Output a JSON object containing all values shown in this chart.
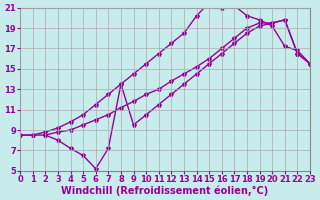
{
  "xlabel": "Windchill (Refroidissement éolien,°C)",
  "bg_color": "#c8ecec",
  "line_color": "#990099",
  "grid_color": "#aaaaaa",
  "xlim": [
    0,
    23
  ],
  "ylim": [
    5,
    21
  ],
  "xticks": [
    0,
    1,
    2,
    3,
    4,
    5,
    6,
    7,
    8,
    9,
    10,
    11,
    12,
    13,
    14,
    15,
    16,
    17,
    18,
    19,
    20,
    21,
    22,
    23
  ],
  "yticks": [
    5,
    7,
    9,
    11,
    13,
    15,
    17,
    19,
    21
  ],
  "line1_x": [
    0,
    1,
    2,
    3,
    4,
    5,
    6,
    7,
    8,
    9,
    10,
    11,
    12,
    13,
    14,
    15,
    16,
    17,
    18,
    19,
    20,
    21,
    22,
    23
  ],
  "line1_y": [
    8.5,
    8.5,
    8.8,
    9.2,
    9.8,
    10.5,
    11.5,
    12.5,
    13.5,
    14.5,
    15.5,
    16.5,
    17.5,
    18.5,
    20.2,
    21.5,
    21.0,
    21.2,
    20.2,
    19.8,
    19.2,
    17.2,
    16.8,
    15.5
  ],
  "line2_x": [
    2,
    3,
    4,
    5,
    6,
    7,
    8,
    9,
    10,
    11,
    12,
    13,
    14,
    15,
    16,
    17,
    18,
    19,
    20,
    21,
    22,
    23
  ],
  "line2_y": [
    8.5,
    8.8,
    9.0,
    9.5,
    10.0,
    10.5,
    11.2,
    11.8,
    12.5,
    13.0,
    13.8,
    14.5,
    15.2,
    16.0,
    17.0,
    18.0,
    19.0,
    19.5,
    19.5,
    19.8,
    16.5,
    15.5
  ],
  "line3_x": [
    0,
    1,
    2,
    3,
    4,
    5,
    6,
    7,
    8,
    9,
    10,
    11,
    12,
    13,
    14,
    15,
    16,
    17,
    18,
    19,
    20,
    21,
    22,
    23
  ],
  "line3_y": [
    8.5,
    8.5,
    8.5,
    8.0,
    7.2,
    6.5,
    5.2,
    7.2,
    13.5,
    9.5,
    10.5,
    11.5,
    12.5,
    13.5,
    14.5,
    15.5,
    16.5,
    17.5,
    18.5,
    19.2,
    19.5,
    19.8,
    16.5,
    15.5
  ],
  "marker": "*",
  "markersize": 3,
  "linewidth": 1.0,
  "tick_fontsize": 6,
  "label_fontsize": 7
}
